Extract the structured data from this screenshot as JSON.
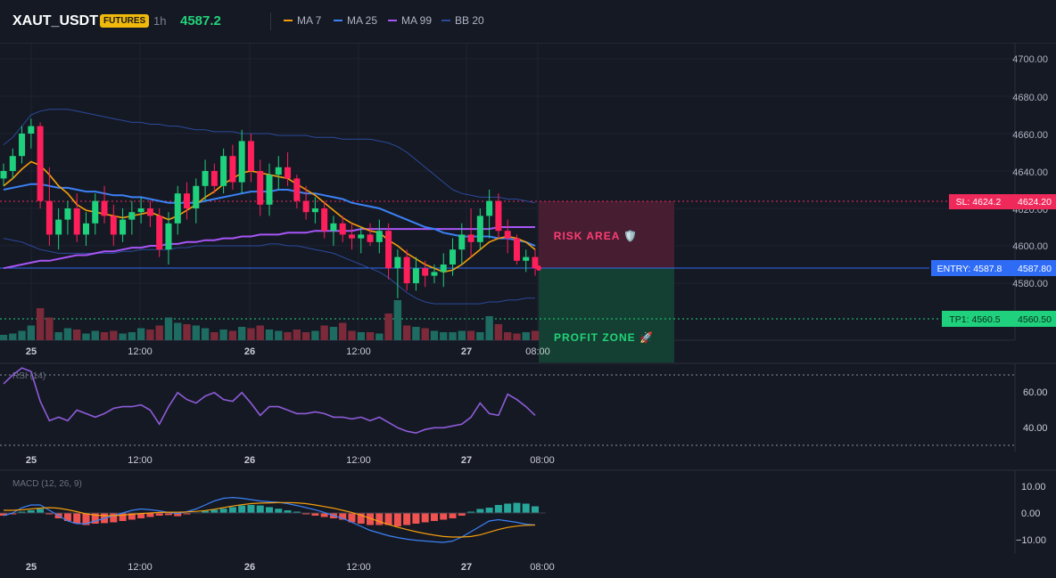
{
  "header": {
    "symbol": "XAUT_USDT",
    "badge": "FUTURES",
    "timeframe": "1h",
    "price": "4587.2",
    "legend": [
      {
        "label": "MA 7",
        "color": "#f59e0b"
      },
      {
        "label": "MA 25",
        "color": "#3b82f6"
      },
      {
        "label": "MA 99",
        "color": "#a855f7"
      },
      {
        "label": "BB 20",
        "color": "#2a4a9b"
      }
    ]
  },
  "colors": {
    "up": "#26a69a",
    "down": "#ef476f",
    "bull": "#1fd17c",
    "bear": "#ff1f5a",
    "sl": "#f0295b",
    "tp": "#1fd17c",
    "entry": "#2e6cf5"
  },
  "price_axis": {
    "ticks": [
      "4700.00",
      "4680.00",
      "4660.00",
      "4640.00",
      "4620.00",
      "4600.00",
      "4580.00"
    ]
  },
  "levels": {
    "sl": {
      "label": "SL: 4624.2",
      "value": "4624.20"
    },
    "entry": {
      "label": "ENTRY: 4587.8",
      "value": "4587.80"
    },
    "tp": {
      "label": "TP1: 4560.5",
      "value": "4560.50"
    }
  },
  "zones": {
    "risk": "RISK AREA 🛡️",
    "profit": "PROFIT ZONE 🚀"
  },
  "time_axis": [
    "25",
    "12:00",
    "26",
    "12:00",
    "27",
    "08:00"
  ],
  "rsi": {
    "label": "RSI (14)",
    "ticks": [
      "60.00",
      "40.00"
    ]
  },
  "macd": {
    "label": "MACD (12, 26, 9)",
    "ticks": [
      "10.00",
      "0.00",
      "−10.00"
    ]
  },
  "chart_data": {
    "type": "candlestick",
    "ohlc": [
      [
        4636,
        4644,
        4632,
        4640
      ],
      [
        4640,
        4652,
        4636,
        4648
      ],
      [
        4648,
        4664,
        4644,
        4660
      ],
      [
        4660,
        4668,
        4652,
        4664
      ],
      [
        4664,
        4666,
        4620,
        4624
      ],
      [
        4624,
        4642,
        4600,
        4606
      ],
      [
        4606,
        4620,
        4598,
        4614
      ],
      [
        4614,
        4624,
        4606,
        4620
      ],
      [
        4620,
        4628,
        4602,
        4606
      ],
      [
        4606,
        4618,
        4600,
        4612
      ],
      [
        4612,
        4628,
        4606,
        4624
      ],
      [
        4624,
        4632,
        4612,
        4616
      ],
      [
        4616,
        4622,
        4600,
        4606
      ],
      [
        4606,
        4620,
        4602,
        4614
      ],
      [
        4614,
        4624,
        4606,
        4618
      ],
      [
        4618,
        4626,
        4612,
        4620
      ],
      [
        4620,
        4624,
        4610,
        4616
      ],
      [
        4616,
        4620,
        4594,
        4598
      ],
      [
        4598,
        4618,
        4590,
        4612
      ],
      [
        4612,
        4632,
        4606,
        4628
      ],
      [
        4628,
        4634,
        4614,
        4620
      ],
      [
        4620,
        4636,
        4612,
        4632
      ],
      [
        4632,
        4646,
        4624,
        4640
      ],
      [
        4640,
        4644,
        4628,
        4632
      ],
      [
        4632,
        4652,
        4628,
        4648
      ],
      [
        4648,
        4654,
        4630,
        4634
      ],
      [
        4634,
        4662,
        4628,
        4656
      ],
      [
        4656,
        4660,
        4634,
        4640
      ],
      [
        4640,
        4646,
        4616,
        4622
      ],
      [
        4622,
        4644,
        4616,
        4638
      ],
      [
        4638,
        4648,
        4630,
        4642
      ],
      [
        4642,
        4650,
        4632,
        4636
      ],
      [
        4636,
        4638,
        4620,
        4624
      ],
      [
        4624,
        4632,
        4614,
        4618
      ],
      [
        4618,
        4626,
        4612,
        4620
      ],
      [
        4620,
        4624,
        4604,
        4608
      ],
      [
        4608,
        4616,
        4600,
        4612
      ],
      [
        4612,
        4616,
        4602,
        4606
      ],
      [
        4606,
        4612,
        4598,
        4604
      ],
      [
        4604,
        4610,
        4596,
        4606
      ],
      [
        4606,
        4612,
        4600,
        4602
      ],
      [
        4602,
        4614,
        4596,
        4608
      ],
      [
        4608,
        4612,
        4582,
        4588
      ],
      [
        4588,
        4598,
        4572,
        4594
      ],
      [
        4594,
        4598,
        4576,
        4580
      ],
      [
        4580,
        4594,
        4576,
        4588
      ],
      [
        4588,
        4592,
        4578,
        4584
      ],
      [
        4584,
        4590,
        4580,
        4586
      ],
      [
        4586,
        4596,
        4578,
        4590
      ],
      [
        4590,
        4604,
        4584,
        4598
      ],
      [
        4598,
        4612,
        4590,
        4606
      ],
      [
        4606,
        4620,
        4594,
        4602
      ],
      [
        4602,
        4620,
        4598,
        4616
      ],
      [
        4616,
        4630,
        4604,
        4624
      ],
      [
        4624,
        4628,
        4604,
        4608
      ],
      [
        4608,
        4614,
        4596,
        4604
      ],
      [
        4604,
        4606,
        4590,
        4592
      ],
      [
        4592,
        4598,
        4586,
        4594
      ],
      [
        4594,
        4598,
        4584,
        4588
      ]
    ],
    "ma7": [
      4632,
      4636,
      4641,
      4645,
      4643,
      4638,
      4632,
      4628,
      4622,
      4619,
      4618,
      4617,
      4616,
      4615,
      4616,
      4617,
      4618,
      4616,
      4614,
      4616,
      4619,
      4622,
      4626,
      4629,
      4633,
      4636,
      4639,
      4640,
      4639,
      4638,
      4637,
      4636,
      4633,
      4630,
      4627,
      4623,
      4619,
      4615,
      4612,
      4610,
      4608,
      4607,
      4603,
      4600,
      4596,
      4593,
      4590,
      4588,
      4586,
      4587,
      4590,
      4594,
      4598,
      4602,
      4604,
      4605,
      4604,
      4602,
      4598
    ],
    "ma25": [
      4630,
      4631,
      4632,
      4633,
      4633,
      4632,
      4631,
      4631,
      4630,
      4629,
      4629,
      4628,
      4627,
      4627,
      4626,
      4626,
      4625,
      4624,
      4623,
      4623,
      4623,
      4623,
      4624,
      4625,
      4626,
      4627,
      4628,
      4629,
      4629,
      4629,
      4630,
      4630,
      4629,
      4628,
      4628,
      4627,
      4626,
      4625,
      4623,
      4622,
      4621,
      4620,
      4618,
      4616,
      4614,
      4612,
      4610,
      4609,
      4607,
      4606,
      4605,
      4605,
      4605,
      4605,
      4604,
      4604,
      4603,
      4602,
      4600
    ],
    "ma99": [
      4588,
      4589,
      4590,
      4591,
      4592,
      4592,
      4593,
      4594,
      4595,
      4595,
      4596,
      4597,
      4597,
      4598,
      4599,
      4599,
      4600,
      4600,
      4601,
      4601,
      4602,
      4602,
      4603,
      4603,
      4604,
      4604,
      4605,
      4605,
      4606,
      4606,
      4606,
      4607,
      4607,
      4607,
      4608,
      4608,
      4608,
      4608,
      4608,
      4609,
      4609,
      4609,
      4609,
      4609,
      4609,
      4609,
      4609,
      4609,
      4609,
      4609,
      4609,
      4609,
      4609,
      4609,
      4610,
      4610,
      4610,
      4610,
      4610
    ],
    "bb_upper": [
      4654,
      4658,
      4664,
      4670,
      4672,
      4673,
      4673,
      4673,
      4672,
      4671,
      4670,
      4669,
      4668,
      4667,
      4666,
      4666,
      4665,
      4665,
      4664,
      4664,
      4663,
      4662,
      4662,
      4661,
      4661,
      4661,
      4660,
      4660,
      4660,
      4660,
      4659,
      4659,
      4659,
      4659,
      4658,
      4658,
      4658,
      4657,
      4657,
      4657,
      4657,
      4656,
      4655,
      4653,
      4650,
      4646,
      4642,
      4638,
      4634,
      4630,
      4628,
      4627,
      4626,
      4626,
      4626,
      4625,
      4625,
      4624,
      4623
    ],
    "bb_lower": [
      4604,
      4603,
      4602,
      4600,
      4598,
      4597,
      4596,
      4596,
      4596,
      4596,
      4596,
      4596,
      4596,
      4597,
      4597,
      4598,
      4598,
      4598,
      4598,
      4599,
      4599,
      4600,
      4600,
      4600,
      4600,
      4600,
      4600,
      4600,
      4600,
      4601,
      4601,
      4600,
      4600,
      4599,
      4598,
      4597,
      4596,
      4594,
      4592,
      4590,
      4588,
      4586,
      4583,
      4579,
      4575,
      4572,
      4570,
      4569,
      4569,
      4569,
      4569,
      4569,
      4569,
      4570,
      4570,
      4571,
      4571,
      4572,
      4572
    ],
    "volume": [
      8,
      10,
      14,
      22,
      48,
      34,
      12,
      18,
      16,
      10,
      14,
      12,
      14,
      10,
      12,
      18,
      16,
      22,
      34,
      26,
      24,
      22,
      18,
      12,
      16,
      14,
      20,
      18,
      22,
      16,
      14,
      12,
      16,
      12,
      14,
      22,
      20,
      26,
      14,
      12,
      12,
      10,
      40,
      60,
      22,
      20,
      18,
      14,
      12,
      12,
      14,
      14,
      12,
      36,
      24,
      12,
      10,
      12,
      14
    ],
    "rsi": [
      65,
      70,
      74,
      72,
      55,
      44,
      46,
      44,
      50,
      48,
      46,
      48,
      51,
      52,
      52,
      53,
      50,
      42,
      52,
      60,
      56,
      54,
      58,
      60,
      56,
      55,
      60,
      54,
      47,
      52,
      52,
      50,
      48,
      48,
      49,
      48,
      46,
      46,
      45,
      46,
      44,
      46,
      43,
      40,
      38,
      37,
      39,
      40,
      40,
      41,
      42,
      46,
      54,
      48,
      47,
      59,
      56,
      52,
      47
    ]
  }
}
